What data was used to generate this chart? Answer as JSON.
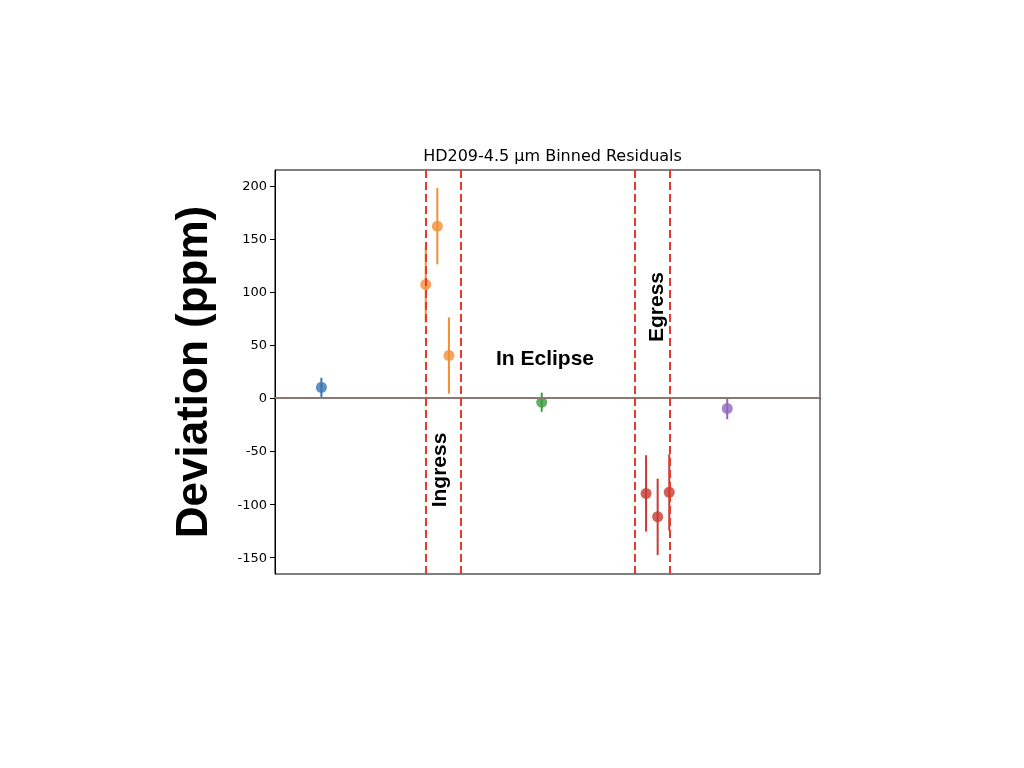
{
  "chart_data": {
    "type": "scatter",
    "title": "HD209-4.5 μm Binned Residuals",
    "ylabel": "Deviation (ppm)",
    "categories": [
      null,
      null,
      null,
      null,
      null,
      null,
      null,
      null,
      null,
      null,
      null,
      null,
      null,
      null,
      null,
      null,
      null,
      null,
      null,
      null,
      null,
      null,
      null,
      null,
      null,
      null,
      null,
      null,
      null,
      null,
      null,
      null,
      null,
      null,
      null,
      null,
      null,
      null,
      null,
      null,
      null,
      null,
      null,
      null,
      null,
      null,
      null,
      null
    ],
    "ylim": [
      -166,
      215
    ],
    "yticks": [
      -150,
      -100,
      -50,
      0,
      50,
      100,
      150,
      200
    ],
    "grid": false,
    "marker": "circle",
    "series": [
      {
        "color": "#3a75b0",
        "values": [
          null,
          null,
          null,
          null,
          10,
          null,
          null,
          null,
          null,
          null,
          null,
          null,
          null,
          null,
          null,
          null,
          null,
          null,
          null,
          null,
          null,
          null,
          null,
          null,
          null,
          null,
          null,
          null,
          null,
          null,
          null,
          null,
          null,
          null,
          null,
          null,
          null,
          null,
          null,
          null,
          null,
          null,
          null,
          null,
          null,
          null,
          null,
          null
        ],
        "errors": [
          null,
          null,
          null,
          null,
          9,
          null,
          null,
          null,
          null,
          null,
          null,
          null,
          null,
          null,
          null,
          null,
          null,
          null,
          null,
          null,
          null,
          null,
          null,
          null,
          null,
          null,
          null,
          null,
          null,
          null,
          null,
          null,
          null,
          null,
          null,
          null,
          null,
          null,
          null,
          null,
          null,
          null,
          null,
          null,
          null,
          null,
          null,
          null
        ]
      },
      {
        "color": "#f28e35",
        "values": [
          null,
          null,
          null,
          null,
          null,
          null,
          null,
          null,
          null,
          null,
          null,
          null,
          null,
          107,
          162,
          40,
          null,
          null,
          null,
          null,
          null,
          null,
          null,
          null,
          null,
          null,
          null,
          null,
          null,
          null,
          null,
          null,
          null,
          null,
          null,
          null,
          null,
          null,
          null,
          null,
          null,
          null,
          null,
          null,
          null,
          null,
          null,
          null
        ],
        "errors": [
          null,
          null,
          null,
          null,
          null,
          null,
          null,
          null,
          null,
          null,
          null,
          null,
          null,
          36,
          36,
          36,
          null,
          null,
          null,
          null,
          null,
          null,
          null,
          null,
          null,
          null,
          null,
          null,
          null,
          null,
          null,
          null,
          null,
          null,
          null,
          null,
          null,
          null,
          null,
          null,
          null,
          null,
          null,
          null,
          null,
          null,
          null,
          null
        ]
      },
      {
        "color": "#3f9a3f",
        "values": [
          null,
          null,
          null,
          null,
          null,
          null,
          null,
          null,
          null,
          null,
          null,
          null,
          null,
          null,
          null,
          null,
          null,
          null,
          null,
          null,
          null,
          null,
          null,
          -4,
          null,
          null,
          null,
          null,
          null,
          null,
          null,
          null,
          null,
          null,
          null,
          null,
          null,
          null,
          null,
          null,
          null,
          null,
          null,
          null,
          null,
          null,
          null,
          null
        ],
        "errors": [
          null,
          null,
          null,
          null,
          null,
          null,
          null,
          null,
          null,
          null,
          null,
          null,
          null,
          null,
          null,
          null,
          null,
          null,
          null,
          null,
          null,
          null,
          null,
          9,
          null,
          null,
          null,
          null,
          null,
          null,
          null,
          null,
          null,
          null,
          null,
          null,
          null,
          null,
          null,
          null,
          null,
          null,
          null,
          null,
          null,
          null,
          null,
          null
        ]
      },
      {
        "color": "#c83a32",
        "values": [
          null,
          null,
          null,
          null,
          null,
          null,
          null,
          null,
          null,
          null,
          null,
          null,
          null,
          null,
          null,
          null,
          null,
          null,
          null,
          null,
          null,
          null,
          null,
          null,
          null,
          null,
          null,
          null,
          null,
          null,
          null,
          null,
          -90,
          -112,
          -89,
          null,
          null,
          null,
          null,
          null,
          null,
          null,
          null,
          null,
          null,
          null,
          null,
          null
        ],
        "errors": [
          null,
          null,
          null,
          null,
          null,
          null,
          null,
          null,
          null,
          null,
          null,
          null,
          null,
          null,
          null,
          null,
          null,
          null,
          null,
          null,
          null,
          null,
          null,
          null,
          null,
          null,
          null,
          null,
          null,
          null,
          null,
          null,
          36,
          36,
          36,
          null,
          null,
          null,
          null,
          null,
          null,
          null,
          null,
          null,
          null,
          null,
          null,
          null
        ]
      },
      {
        "color": "#9167bd",
        "values": [
          null,
          null,
          null,
          null,
          null,
          null,
          null,
          null,
          null,
          null,
          null,
          null,
          null,
          null,
          null,
          null,
          null,
          null,
          null,
          null,
          null,
          null,
          null,
          null,
          null,
          null,
          null,
          null,
          null,
          null,
          null,
          null,
          null,
          null,
          null,
          null,
          null,
          null,
          null,
          -10,
          null,
          null,
          null,
          null,
          null,
          null,
          null,
          null
        ],
        "errors": [
          null,
          null,
          null,
          null,
          null,
          null,
          null,
          null,
          null,
          null,
          null,
          null,
          null,
          null,
          null,
          null,
          null,
          null,
          null,
          null,
          null,
          null,
          null,
          null,
          null,
          null,
          null,
          null,
          null,
          null,
          null,
          null,
          null,
          null,
          null,
          null,
          null,
          null,
          null,
          10,
          null,
          null,
          null,
          null,
          null,
          null,
          null,
          null
        ]
      }
    ],
    "ref_lines": [
      {
        "axis": "y",
        "value": 0,
        "color": "#8c7873",
        "line_style": "solid"
      }
    ],
    "annotations": [
      "Ingress",
      "In Eclipse",
      "Egress"
    ]
  }
}
